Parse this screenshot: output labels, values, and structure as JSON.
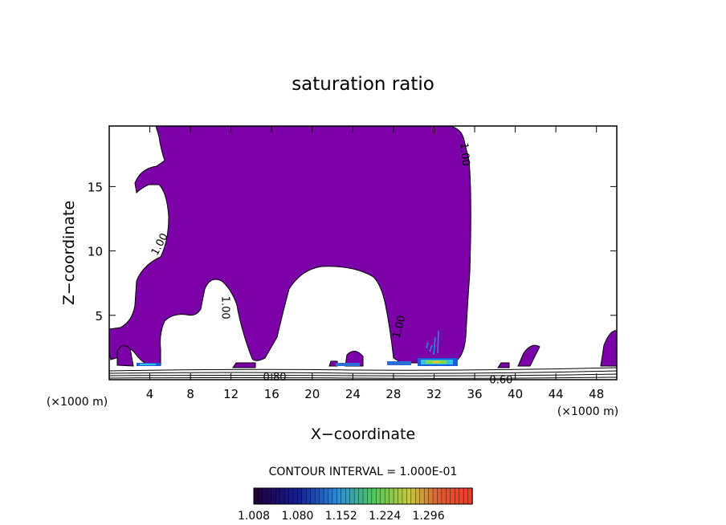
{
  "chart_data": {
    "type": "contour",
    "title": "saturation ratio",
    "xlabel": "X−coordinate",
    "ylabel": "Z−coordinate",
    "x_unit_left": "(×1000 m)",
    "x_unit_right": "(×1000 m)",
    "xlim": [
      0,
      50
    ],
    "ylim": [
      0,
      19.7
    ],
    "x_ticks": [
      4,
      8,
      12,
      16,
      20,
      24,
      28,
      32,
      36,
      40,
      44,
      48
    ],
    "y_ticks": [
      5,
      10,
      15
    ],
    "contour_labels": [
      {
        "text": "1.00",
        "x": 5,
        "z": 10.5,
        "rot": -62
      },
      {
        "text": "1.00",
        "x": 11.4,
        "z": 5.6,
        "rot": 90
      },
      {
        "text": "1.00",
        "x": 28.6,
        "z": 4.1,
        "rot": -75
      },
      {
        "text": "1.00",
        "x": 35,
        "z": 17.5,
        "rot": 85
      },
      {
        "text": "0.80",
        "x": 16.3,
        "z": 0.15,
        "rot": 0
      },
      {
        "text": "0.60",
        "x": 38.6,
        "z": -0.05,
        "rot": 0
      }
    ],
    "contour_interval_text": "CONTOUR INTERVAL = 1.000E-01",
    "colorbar": {
      "min": 1.008,
      "max": 1.368,
      "tick_labels": [
        "1.008",
        "1.080",
        "1.152",
        "1.224",
        "1.296"
      ]
    },
    "fill_color": "#7b00a8"
  }
}
